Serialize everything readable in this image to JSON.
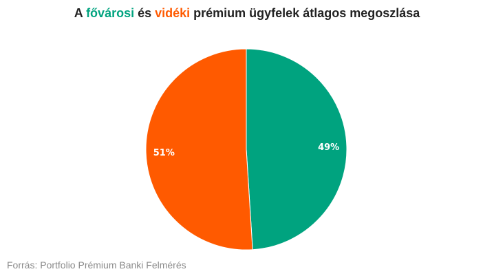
{
  "title": {
    "prefix": "A ",
    "highlight_a": "fővárosi",
    "mid": " és ",
    "highlight_b": "vidéki",
    "suffix": " prémium ügyfelek átlagos megoszlása"
  },
  "colors": {
    "fovarosi": "#00a37f",
    "videki": "#ff5a00",
    "title_text": "#222222",
    "source_text": "#8a8a8a"
  },
  "chart_data": {
    "type": "pie",
    "title": "A fővárosi és vidéki prémium ügyfelek átlagos megoszlása",
    "slices": [
      {
        "category": "fővárosi",
        "value": 49,
        "label": "49%",
        "color": "#00a37f"
      },
      {
        "category": "vidéki",
        "value": 51,
        "label": "51%",
        "color": "#ff5a00"
      }
    ],
    "start": "12 o'clock",
    "direction": "clockwise",
    "legend": "none"
  },
  "source": "Forrás: Portfolio Prémium Banki Felmérés"
}
